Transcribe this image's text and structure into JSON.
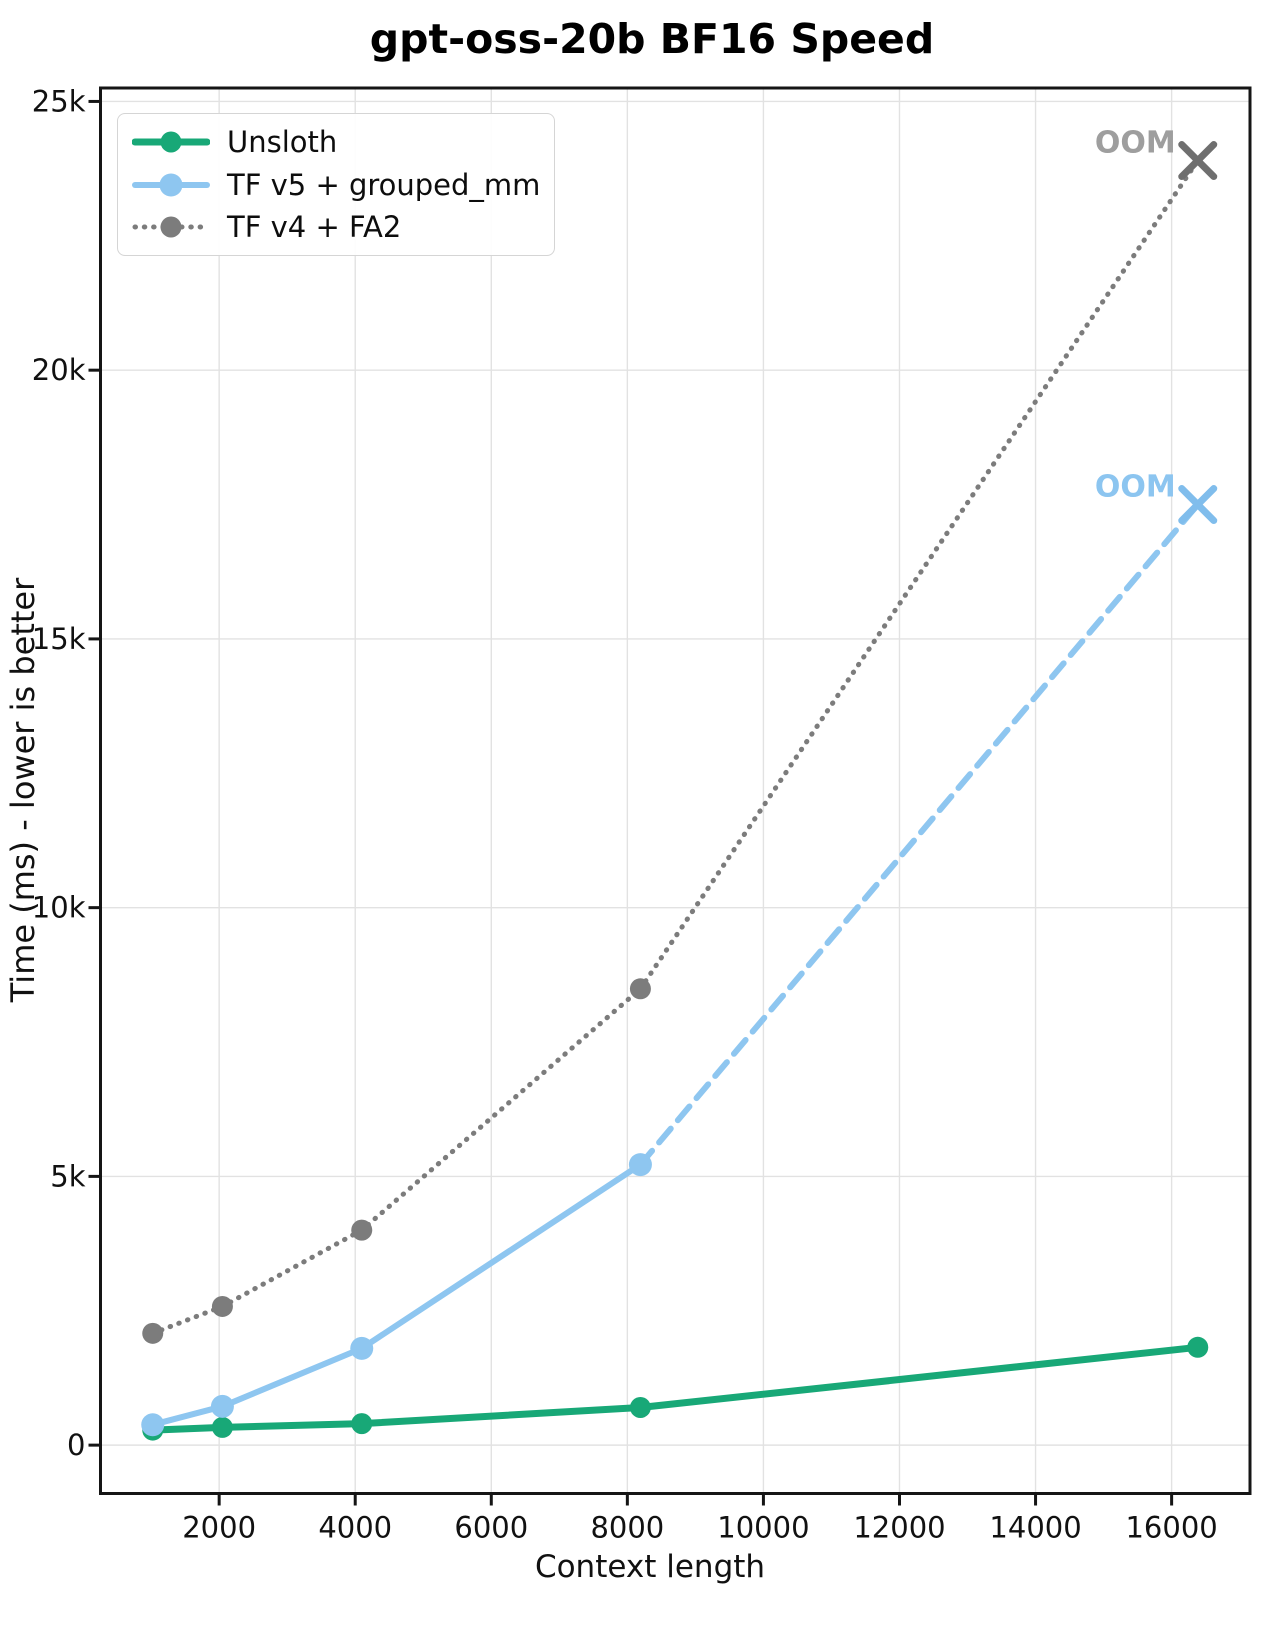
{
  "chart_data": {
    "type": "line",
    "title": "gpt-oss-20b BF16 Speed",
    "xlabel": "Context length",
    "ylabel": "Time (ms) - lower is better",
    "x_ticks": [
      2000,
      4000,
      6000,
      8000,
      10000,
      12000,
      14000,
      16000
    ],
    "y_ticks": [
      {
        "value": 0,
        "label": "0"
      },
      {
        "value": 5000,
        "label": "5k"
      },
      {
        "value": 10000,
        "label": "10k"
      },
      {
        "value": 15000,
        "label": "15k"
      },
      {
        "value": 20000,
        "label": "20k"
      },
      {
        "value": 25000,
        "label": "25k"
      }
    ],
    "xlim": [
      256,
      17152
    ],
    "ylim": [
      -900,
      25250
    ],
    "grid": true,
    "legend_position": "upper left",
    "series": [
      {
        "name": "Unsloth",
        "color": "#18a877",
        "line_style": "solid",
        "line_width": 7,
        "marker": "circle",
        "marker_size": 10.5,
        "x": [
          1024,
          2048,
          4096,
          8192,
          16384
        ],
        "y": [
          280,
          330,
          400,
          700,
          1820
        ]
      },
      {
        "name": "TF v5 + grouped_mm",
        "color": "#8ec6f0",
        "line_style": "solid",
        "line_width": 6,
        "marker": "circle",
        "marker_size": 11.5,
        "x": [
          1024,
          2048,
          4096,
          8192
        ],
        "y": [
          380,
          720,
          1800,
          5220
        ],
        "oom": {
          "x": 16384,
          "y": 17500,
          "label": "OOM",
          "segment_style": "dashed",
          "x_color": "#80bdec",
          "label_color": "#8cc5f0"
        }
      },
      {
        "name": "TF v4 + FA2",
        "color": "#7c7c7c",
        "line_style": "dotted",
        "line_width": 5,
        "marker": "circle",
        "marker_size": 10.5,
        "x": [
          1024,
          2048,
          4096,
          8192
        ],
        "y": [
          2080,
          2580,
          4000,
          8490
        ],
        "oom": {
          "x": 16384,
          "y": 23900,
          "label": "OOM",
          "segment_style": "dotted",
          "x_color": "#6f6f6f",
          "label_color": "#9e9e9e"
        }
      }
    ]
  }
}
